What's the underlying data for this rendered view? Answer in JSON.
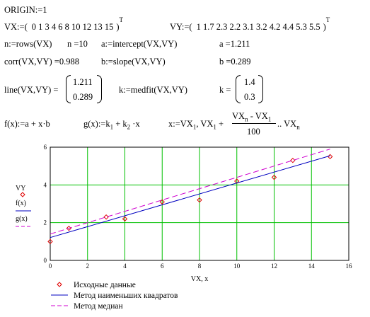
{
  "lines": {
    "origin": "ORIGIN:=1",
    "vx_def": "VX:=(",
    "vx_values": "0  1  3  4  6  8  10  12  13  15",
    "vy_def": "VY:=(",
    "vy_values": "1  1.7  2.3  2.2  3.1  3.2  4.2  4.4  5.3  5.5",
    "transpose": "T",
    "n_def": "n:=rows(VX)",
    "n_val": "n =10",
    "a_def": "a:=intercept(VX,VY)",
    "a_val": "a =1.211",
    "corr": "corr(VX,VY) =0.988",
    "b_def": "b:=slope(VX,VY)",
    "b_val": "b =0.289",
    "line_expr": "line(VX,VY) =",
    "line_vec": [
      "1.211",
      "0.289"
    ],
    "k_def": "k:=medfit(VX,VY)",
    "k_expr": "k =",
    "k_vec": [
      "1.4",
      "0.3"
    ],
    "f_def": "f(x):=a + x·b",
    "g_def": "g(x):=k",
    "g_plus": " + k",
    "g_x": " ·x",
    "sub1": "1",
    "sub2": "2",
    "subn": "n",
    "x_def": "x:=VX",
    "x_comma": ", VX",
    "x_plus": " +",
    "x_num_a": "VX",
    "x_num_minus": " -  VX",
    "x_den": "100",
    "x_range": ".. VX"
  },
  "chart_data": {
    "type": "line",
    "xlabel": "VX, x",
    "ylabel_lines": [
      "VY",
      "f(x)",
      "g(x)"
    ],
    "xlim": [
      0,
      16
    ],
    "ylim": [
      0,
      6
    ],
    "xticks": [
      0,
      2,
      4,
      6,
      8,
      10,
      12,
      14,
      16
    ],
    "yticks": [
      0,
      2,
      4,
      6
    ],
    "grid": true,
    "legend_position": "bottom",
    "series": [
      {
        "name": "Исходные данные",
        "kind": "scatter",
        "color": "#e00000",
        "x": [
          0,
          1,
          3,
          4,
          6,
          8,
          10,
          12,
          13,
          15
        ],
        "y": [
          1,
          1.7,
          2.3,
          2.2,
          3.1,
          3.2,
          4.2,
          4.4,
          5.3,
          5.5
        ]
      },
      {
        "name": "Метод наименьших квадратов",
        "kind": "line",
        "color": "#0000c0",
        "x": [
          0,
          15
        ],
        "y": [
          1.211,
          5.546
        ]
      },
      {
        "name": "Метод медиан",
        "kind": "dash",
        "color": "#d000d0",
        "x": [
          0,
          15
        ],
        "y": [
          1.4,
          5.9
        ]
      }
    ]
  }
}
